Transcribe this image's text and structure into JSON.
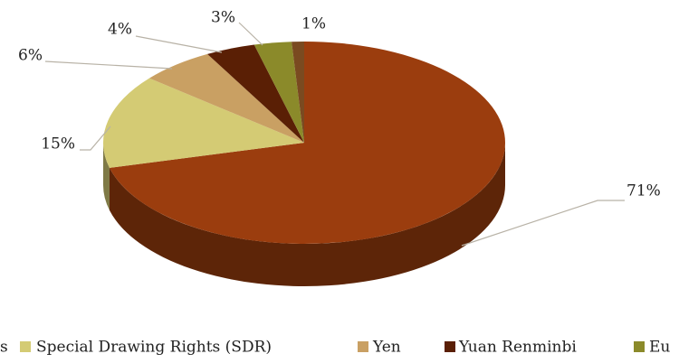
{
  "chart_data": {
    "type": "pie3d",
    "categories": [
      "s",
      "Special Drawing Rights (SDR)",
      "Yen",
      "Yuan Renminbi",
      "Eu",
      null
    ],
    "values": [
      71,
      15,
      6,
      4,
      3,
      1
    ],
    "value_labels": [
      "71%",
      "15%",
      "6%",
      "4%",
      "3%",
      "1%"
    ],
    "colors": [
      "#9b3d0e",
      "#d4cb74",
      "#c9a063",
      "#5a1f05",
      "#8b8a2a",
      "#7a4a20"
    ],
    "start_angle": 90,
    "direction": "clockwise",
    "legend": "bottom"
  }
}
